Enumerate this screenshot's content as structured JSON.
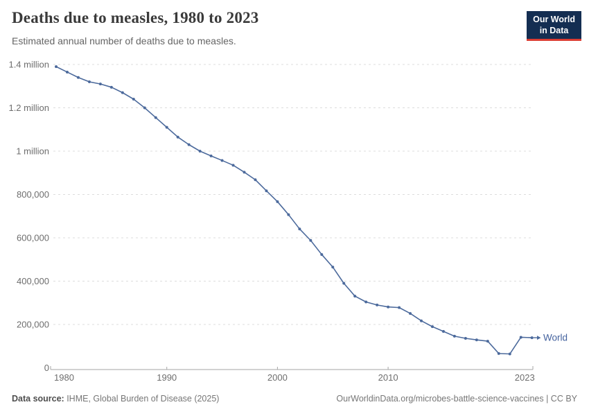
{
  "header": {
    "title": "Deaths due to measles, 1980 to 2023",
    "subtitle": "Estimated annual number of deaths due to measles.",
    "logo": {
      "line1": "Our World",
      "line2": "in Data",
      "bg_color": "#142e52",
      "accent_color": "#dc3d33"
    }
  },
  "chart_data": {
    "type": "line",
    "title": "Deaths due to measles, 1980 to 2023",
    "x": [
      1980,
      1981,
      1982,
      1983,
      1984,
      1985,
      1986,
      1987,
      1988,
      1989,
      1990,
      1991,
      1992,
      1993,
      1994,
      1995,
      1996,
      1997,
      1998,
      1999,
      2000,
      2001,
      2002,
      2003,
      2004,
      2005,
      2006,
      2007,
      2008,
      2009,
      2010,
      2011,
      2012,
      2013,
      2014,
      2015,
      2016,
      2017,
      2018,
      2019,
      2020,
      2021,
      2022,
      2023
    ],
    "series": [
      {
        "name": "World",
        "color": "#4C6A9C",
        "values": [
          1390000,
          1365000,
          1340000,
          1320000,
          1310000,
          1295000,
          1270000,
          1240000,
          1200000,
          1155000,
          1110000,
          1065000,
          1030000,
          1000000,
          978000,
          957000,
          935000,
          903000,
          868000,
          817000,
          767000,
          707000,
          641000,
          588000,
          523000,
          465000,
          390000,
          331000,
          304000,
          290000,
          281000,
          278000,
          251000,
          217000,
          190000,
          168000,
          146000,
          136000,
          129000,
          123000,
          66000,
          64000,
          141000,
          139000
        ]
      }
    ],
    "xlabel": "",
    "ylabel": "",
    "xlim": [
      1980,
      2023
    ],
    "ylim": [
      0,
      1400000
    ],
    "grid": "horizontal-dashed",
    "legend_position": "end-of-line-label",
    "y_ticks": [
      {
        "value": 0,
        "label": "0"
      },
      {
        "value": 200000,
        "label": "200,000"
      },
      {
        "value": 400000,
        "label": "400,000"
      },
      {
        "value": 600000,
        "label": "600,000"
      },
      {
        "value": 800000,
        "label": "800,000"
      },
      {
        "value": 1000000,
        "label": "1 million"
      },
      {
        "value": 1200000,
        "label": "1.2 million"
      },
      {
        "value": 1400000,
        "label": "1.4 million"
      }
    ],
    "x_ticks": [
      {
        "value": 1980,
        "label": "1980"
      },
      {
        "value": 1990,
        "label": "1990"
      },
      {
        "value": 2000,
        "label": "2000"
      },
      {
        "value": 2010,
        "label": "2010"
      },
      {
        "value": 2023,
        "label": "2023"
      }
    ]
  },
  "colors": {
    "line": "#4C6A9C",
    "entity_label": "#44629e",
    "gridline": "#dcdcdc",
    "axis": "#a6a6a6",
    "tick_text": "#6d6d6d"
  },
  "footer": {
    "source_label": "Data source:",
    "source_value": " IHME, Global Burden of Disease (2025)",
    "credit": "OurWorldinData.org/microbes-battle-science-vaccines | CC BY"
  }
}
